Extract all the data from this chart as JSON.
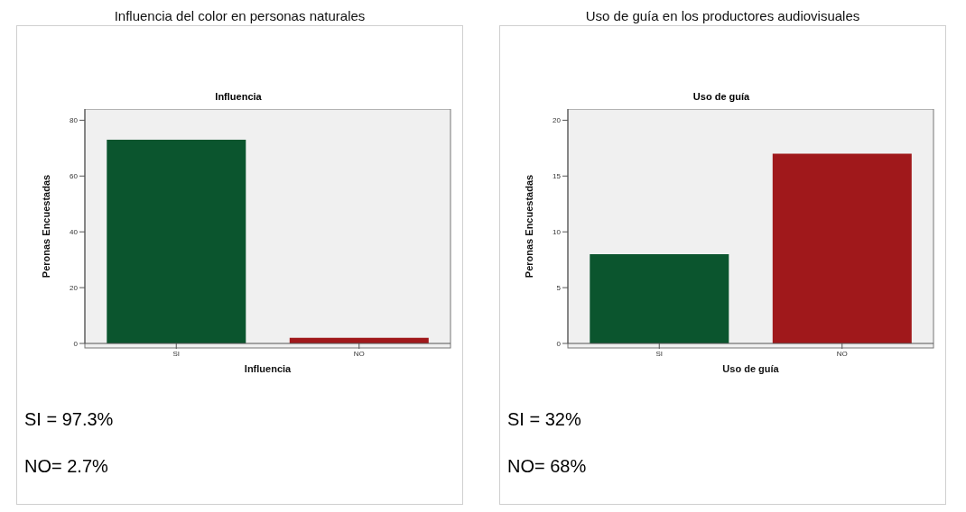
{
  "chart_data": [
    {
      "type": "bar",
      "title": "Influencia del color en personas naturales",
      "subtitle": "Influencia",
      "xlabel": "Influencia",
      "ylabel": "Peronas Encuestadas",
      "categories": [
        "SI",
        "NO"
      ],
      "values": [
        73,
        2
      ],
      "colors": [
        "#0b552e",
        "#a0181b"
      ],
      "ylim": [
        0,
        84
      ],
      "yticks": [
        0,
        20,
        40,
        60,
        80
      ],
      "grid": false,
      "legend": false,
      "annotations": [
        "SI = 97.3%",
        "NO= 2.7%"
      ]
    },
    {
      "type": "bar",
      "title": "Uso de guía en los productores audiovisuales",
      "subtitle": "Uso de guía",
      "xlabel": "Uso de guía",
      "ylabel": "Peronas Encuestadas",
      "categories": [
        "SI",
        "NO"
      ],
      "values": [
        8,
        17
      ],
      "colors": [
        "#0b552e",
        "#a0181b"
      ],
      "ylim": [
        0,
        21
      ],
      "yticks": [
        0,
        5,
        10,
        15,
        20
      ],
      "grid": false,
      "legend": false,
      "annotations": [
        "SI = 32%",
        "NO= 68%"
      ]
    }
  ]
}
